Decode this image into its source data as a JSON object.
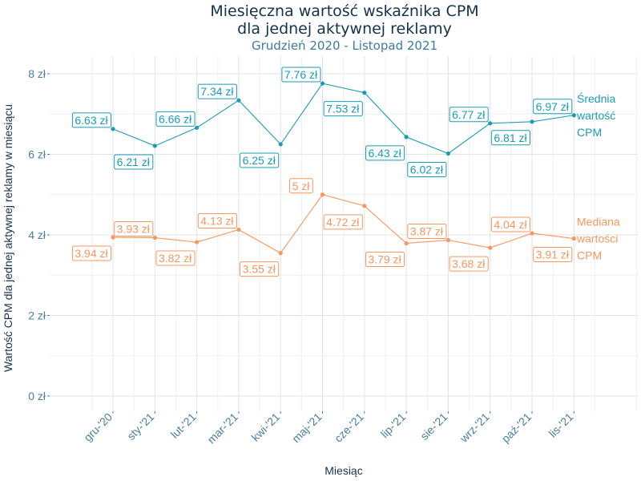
{
  "chart_data": {
    "type": "line",
    "title_line1": "Miesięczna wartość wskaźnika CPM",
    "title_line2": "dla jednej aktywnej reklamy",
    "subtitle": "Grudzień 2020 - Listopad 2021",
    "xlabel": "Miesiąc",
    "ylabel": "Wartość CPM dla jednej aktywnej reklamy w miesiącu",
    "ylim": [
      0,
      8
    ],
    "yticks": [
      0,
      2,
      4,
      6,
      8
    ],
    "ytick_labels": [
      "0 zł",
      "2 zł",
      "4 zł",
      "6 zł",
      "8 zł"
    ],
    "categories": [
      "gru-'20",
      "sty-'21",
      "lut-'21",
      "mar-'21",
      "kwi-'21",
      "maj-'21",
      "cze-'21",
      "lip-'21",
      "sie-'21",
      "wrz-'21",
      "paź-'21",
      "lis-'21"
    ],
    "series": [
      {
        "name": "Średnia wartość CPM",
        "legend_lines": [
          "Średnia",
          "wartość",
          "CPM"
        ],
        "color": "#1a9bb8",
        "values": [
          6.63,
          6.21,
          6.66,
          7.34,
          6.25,
          7.76,
          7.53,
          6.43,
          6.02,
          6.77,
          6.81,
          6.97
        ],
        "labels": [
          "6.63 zł",
          "6.21 zł",
          "6.66 zł",
          "7.34 zł",
          "6.25 zł",
          "7.76 zł",
          "7.53 zł",
          "6.43 zł",
          "6.02 zł",
          "6.77 zł",
          "6.81 zł",
          "6.97 zł"
        ],
        "label_positions": [
          "above",
          "below",
          "above",
          "above",
          "below",
          "above",
          "below",
          "below",
          "below",
          "above",
          "below",
          "above"
        ]
      },
      {
        "name": "Mediana wartości CPM",
        "legend_lines": [
          "Mediana",
          "wartości",
          "CPM"
        ],
        "color": "#f5975e",
        "values": [
          3.94,
          3.93,
          3.82,
          4.13,
          3.55,
          5.0,
          4.72,
          3.79,
          3.87,
          3.68,
          4.04,
          3.91
        ],
        "labels": [
          "3.94 zł",
          "3.93 zł",
          "3.82 zł",
          "4.13 zł",
          "3.55 zł",
          "5 zł",
          "4.72 zł",
          "3.79 zł",
          "3.87 zł",
          "3.68 zł",
          "4.04 zł",
          "3.91 zł"
        ],
        "label_positions": [
          "below",
          "above",
          "below",
          "above",
          "below",
          "above",
          "below",
          "below",
          "above",
          "below",
          "above",
          "below"
        ]
      }
    ],
    "grid": true,
    "legend": "right"
  }
}
